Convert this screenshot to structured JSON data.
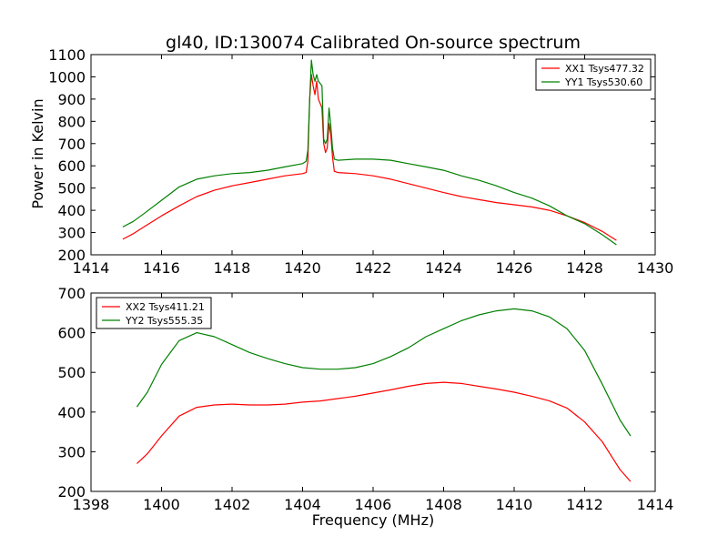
{
  "figure": {
    "title": "gl40, ID:130074 Calibrated On-source spectrum",
    "ylabel": "Power in Kelvin",
    "xlabel": "Frequency (MHz)"
  },
  "chart_data": [
    {
      "type": "line",
      "title": "gl40, ID:130074 Calibrated On-source spectrum",
      "xlabel": "",
      "ylabel": "Power in Kelvin",
      "xlim": [
        1414,
        1430
      ],
      "ylim": [
        200,
        1100
      ],
      "xticks": [
        1414,
        1416,
        1418,
        1420,
        1422,
        1424,
        1426,
        1428,
        1430
      ],
      "yticks": [
        200,
        300,
        400,
        500,
        600,
        700,
        800,
        900,
        1000,
        1100
      ],
      "grid": false,
      "legend_position": "top-right",
      "series": [
        {
          "name": "XX1 Tsys477.32",
          "color": "#ff0000",
          "points": [
            [
              1414.9,
              270
            ],
            [
              1415.2,
              295
            ],
            [
              1415.5,
              325
            ],
            [
              1416,
              375
            ],
            [
              1416.5,
              420
            ],
            [
              1417,
              462
            ],
            [
              1417.5,
              490
            ],
            [
              1418,
              510
            ],
            [
              1418.5,
              525
            ],
            [
              1419,
              540
            ],
            [
              1419.5,
              555
            ],
            [
              1420,
              565
            ],
            [
              1420.1,
              570
            ],
            [
              1420.15,
              620
            ],
            [
              1420.2,
              900
            ],
            [
              1420.25,
              1010
            ],
            [
              1420.3,
              960
            ],
            [
              1420.35,
              920
            ],
            [
              1420.4,
              980
            ],
            [
              1420.45,
              900
            ],
            [
              1420.55,
              860
            ],
            [
              1420.6,
              700
            ],
            [
              1420.65,
              660
            ],
            [
              1420.7,
              680
            ],
            [
              1420.75,
              790
            ],
            [
              1420.8,
              740
            ],
            [
              1420.85,
              640
            ],
            [
              1420.9,
              575
            ],
            [
              1421,
              570
            ],
            [
              1421.5,
              565
            ],
            [
              1422,
              555
            ],
            [
              1422.5,
              540
            ],
            [
              1423,
              520
            ],
            [
              1423.5,
              500
            ],
            [
              1424,
              480
            ],
            [
              1424.5,
              462
            ],
            [
              1425,
              448
            ],
            [
              1425.5,
              435
            ],
            [
              1426,
              425
            ],
            [
              1426.5,
              415
            ],
            [
              1427,
              400
            ],
            [
              1427.5,
              375
            ],
            [
              1428,
              345
            ],
            [
              1428.5,
              305
            ],
            [
              1428.9,
              265
            ]
          ]
        },
        {
          "name": "YY1 Tsys530.60",
          "color": "#008000",
          "points": [
            [
              1414.9,
              325
            ],
            [
              1415.2,
              350
            ],
            [
              1415.5,
              385
            ],
            [
              1416,
              445
            ],
            [
              1416.5,
              505
            ],
            [
              1417,
              540
            ],
            [
              1417.5,
              555
            ],
            [
              1418,
              565
            ],
            [
              1418.5,
              570
            ],
            [
              1419,
              580
            ],
            [
              1419.5,
              595
            ],
            [
              1420,
              610
            ],
            [
              1420.1,
              620
            ],
            [
              1420.15,
              670
            ],
            [
              1420.2,
              900
            ],
            [
              1420.25,
              1075
            ],
            [
              1420.3,
              1010
            ],
            [
              1420.35,
              980
            ],
            [
              1420.4,
              1010
            ],
            [
              1420.45,
              980
            ],
            [
              1420.55,
              960
            ],
            [
              1420.6,
              720
            ],
            [
              1420.65,
              700
            ],
            [
              1420.7,
              720
            ],
            [
              1420.75,
              860
            ],
            [
              1420.8,
              780
            ],
            [
              1420.85,
              680
            ],
            [
              1420.9,
              630
            ],
            [
              1421,
              625
            ],
            [
              1421.5,
              630
            ],
            [
              1422,
              630
            ],
            [
              1422.5,
              625
            ],
            [
              1423,
              610
            ],
            [
              1423.5,
              595
            ],
            [
              1424,
              580
            ],
            [
              1424.5,
              555
            ],
            [
              1425,
              535
            ],
            [
              1425.5,
              510
            ],
            [
              1426,
              480
            ],
            [
              1426.5,
              455
            ],
            [
              1427,
              420
            ],
            [
              1427.5,
              375
            ],
            [
              1428,
              340
            ],
            [
              1428.5,
              290
            ],
            [
              1428.9,
              245
            ]
          ]
        }
      ]
    },
    {
      "type": "line",
      "title": "",
      "xlabel": "Frequency (MHz)",
      "ylabel": "",
      "xlim": [
        1398,
        1414
      ],
      "ylim": [
        200,
        700
      ],
      "xticks": [
        1398,
        1400,
        1402,
        1404,
        1406,
        1408,
        1410,
        1412,
        1414
      ],
      "yticks": [
        200,
        300,
        400,
        500,
        600,
        700
      ],
      "grid": false,
      "legend_position": "top-left",
      "series": [
        {
          "name": "XX2 Tsys411.21",
          "color": "#ff0000",
          "points": [
            [
              1399.3,
              270
            ],
            [
              1399.6,
              295
            ],
            [
              1400,
              340
            ],
            [
              1400.5,
              390
            ],
            [
              1401,
              412
            ],
            [
              1401.5,
              418
            ],
            [
              1402,
              420
            ],
            [
              1402.5,
              418
            ],
            [
              1403,
              418
            ],
            [
              1403.5,
              420
            ],
            [
              1404,
              425
            ],
            [
              1404.5,
              428
            ],
            [
              1405,
              434
            ],
            [
              1405.5,
              440
            ],
            [
              1406,
              448
            ],
            [
              1406.5,
              456
            ],
            [
              1407,
              465
            ],
            [
              1407.5,
              472
            ],
            [
              1408,
              475
            ],
            [
              1408.5,
              472
            ],
            [
              1409,
              465
            ],
            [
              1409.5,
              458
            ],
            [
              1410,
              450
            ],
            [
              1410.5,
              440
            ],
            [
              1411,
              428
            ],
            [
              1411.5,
              410
            ],
            [
              1412,
              375
            ],
            [
              1412.5,
              325
            ],
            [
              1413,
              255
            ],
            [
              1413.3,
              225
            ]
          ]
        },
        {
          "name": "YY2 Tsys555.35",
          "color": "#008000",
          "points": [
            [
              1399.3,
              413
            ],
            [
              1399.6,
              450
            ],
            [
              1400,
              520
            ],
            [
              1400.5,
              580
            ],
            [
              1401,
              600
            ],
            [
              1401.5,
              590
            ],
            [
              1402,
              570
            ],
            [
              1402.5,
              550
            ],
            [
              1403,
              535
            ],
            [
              1403.5,
              522
            ],
            [
              1404,
              512
            ],
            [
              1404.5,
              508
            ],
            [
              1405,
              508
            ],
            [
              1405.5,
              512
            ],
            [
              1406,
              522
            ],
            [
              1406.5,
              540
            ],
            [
              1407,
              562
            ],
            [
              1407.5,
              590
            ],
            [
              1408,
              610
            ],
            [
              1408.5,
              630
            ],
            [
              1409,
              645
            ],
            [
              1409.5,
              655
            ],
            [
              1410,
              660
            ],
            [
              1410.5,
              655
            ],
            [
              1411,
              640
            ],
            [
              1411.5,
              610
            ],
            [
              1412,
              555
            ],
            [
              1412.5,
              470
            ],
            [
              1413,
              380
            ],
            [
              1413.3,
              340
            ]
          ]
        }
      ]
    }
  ]
}
